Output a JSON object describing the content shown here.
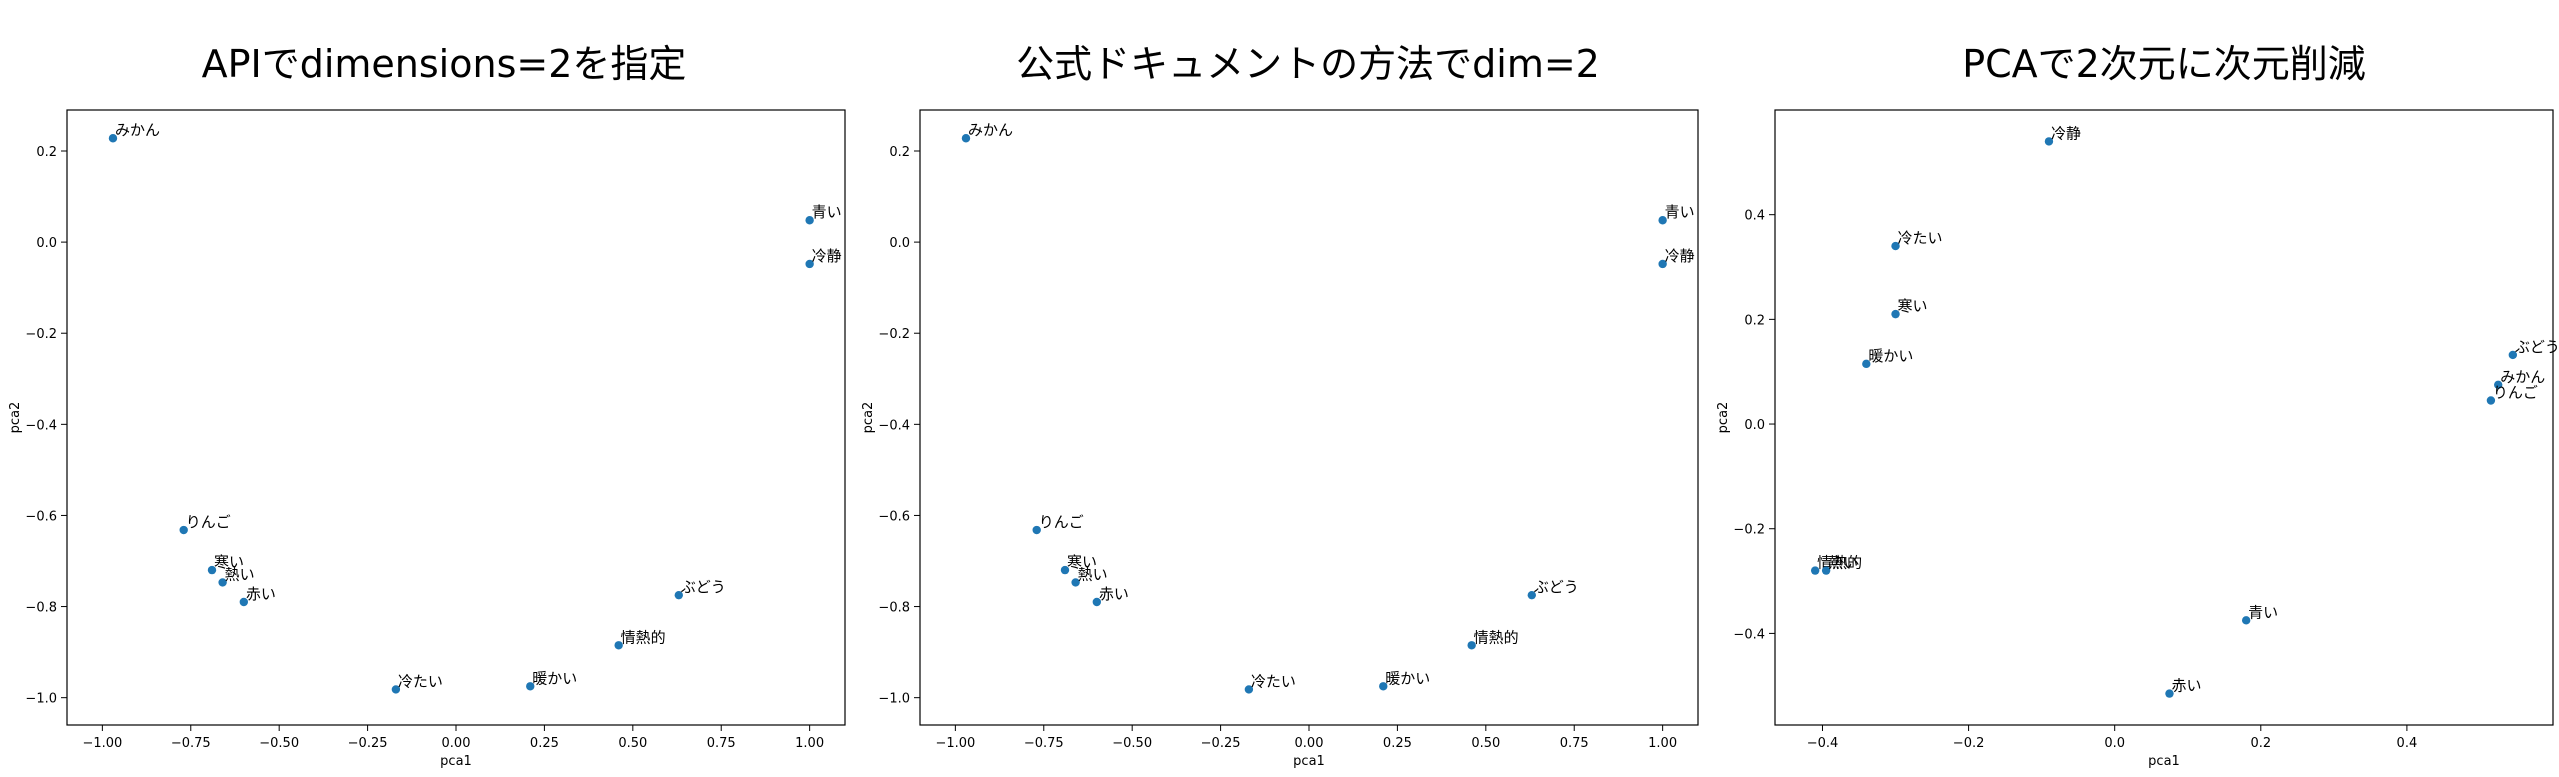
{
  "chart_data": [
    {
      "type": "scatter",
      "title": "APIでdimensions=2を指定",
      "xlabel": "pca1",
      "ylabel": "pca2",
      "xlim": [
        -1.1,
        1.1
      ],
      "ylim": [
        -1.06,
        0.29
      ],
      "xticks": [
        -1.0,
        -0.75,
        -0.5,
        -0.25,
        0.0,
        0.25,
        0.5,
        0.75,
        1.0
      ],
      "xtick_labels": [
        "−1.00",
        "−0.75",
        "−0.50",
        "−0.25",
        "0.00",
        "0.25",
        "0.50",
        "0.75",
        "1.00"
      ],
      "yticks": [
        -1.0,
        -0.8,
        -0.6,
        -0.4,
        -0.2,
        0.0,
        0.2
      ],
      "ytick_labels": [
        "−1.0",
        "−0.8",
        "−0.6",
        "−0.4",
        "−0.2",
        "0.0",
        "0.2"
      ],
      "points": [
        {
          "label": "みかん",
          "x": -0.97,
          "y": 0.228
        },
        {
          "label": "青い",
          "x": 1.0,
          "y": 0.048
        },
        {
          "label": "冷静",
          "x": 1.0,
          "y": -0.048
        },
        {
          "label": "りんご",
          "x": -0.77,
          "y": -0.632
        },
        {
          "label": "寒い",
          "x": -0.69,
          "y": -0.72
        },
        {
          "label": "熱い",
          "x": -0.66,
          "y": -0.747
        },
        {
          "label": "赤い",
          "x": -0.6,
          "y": -0.79
        },
        {
          "label": "ぶどう",
          "x": 0.63,
          "y": -0.775
        },
        {
          "label": "情熱的",
          "x": 0.46,
          "y": -0.885
        },
        {
          "label": "暖かい",
          "x": 0.21,
          "y": -0.975
        },
        {
          "label": "冷たい",
          "x": -0.17,
          "y": -0.982
        }
      ]
    },
    {
      "type": "scatter",
      "title": "公式ドキュメントの方法でdim=2",
      "xlabel": "pca1",
      "ylabel": "pca2",
      "xlim": [
        -1.1,
        1.1
      ],
      "ylim": [
        -1.06,
        0.29
      ],
      "xticks": [
        -1.0,
        -0.75,
        -0.5,
        -0.25,
        0.0,
        0.25,
        0.5,
        0.75,
        1.0
      ],
      "xtick_labels": [
        "−1.00",
        "−0.75",
        "−0.50",
        "−0.25",
        "0.00",
        "0.25",
        "0.50",
        "0.75",
        "1.00"
      ],
      "yticks": [
        -1.0,
        -0.8,
        -0.6,
        -0.4,
        -0.2,
        0.0,
        0.2
      ],
      "ytick_labels": [
        "−1.0",
        "−0.8",
        "−0.6",
        "−0.4",
        "−0.2",
        "0.0",
        "0.2"
      ],
      "points": [
        {
          "label": "みかん",
          "x": -0.97,
          "y": 0.228
        },
        {
          "label": "青い",
          "x": 1.0,
          "y": 0.048
        },
        {
          "label": "冷静",
          "x": 1.0,
          "y": -0.048
        },
        {
          "label": "りんご",
          "x": -0.77,
          "y": -0.632
        },
        {
          "label": "寒い",
          "x": -0.69,
          "y": -0.72
        },
        {
          "label": "熱い",
          "x": -0.66,
          "y": -0.747
        },
        {
          "label": "赤い",
          "x": -0.6,
          "y": -0.79
        },
        {
          "label": "ぶどう",
          "x": 0.63,
          "y": -0.775
        },
        {
          "label": "情熱的",
          "x": 0.46,
          "y": -0.885
        },
        {
          "label": "暖かい",
          "x": 0.21,
          "y": -0.975
        },
        {
          "label": "冷たい",
          "x": -0.17,
          "y": -0.982
        }
      ]
    },
    {
      "type": "scatter",
      "title": "PCAで2次元に次元削減",
      "xlabel": "pca1",
      "ylabel": "pca2",
      "xlim": [
        -0.465,
        0.6
      ],
      "ylim": [
        -0.575,
        0.6
      ],
      "xticks": [
        -0.4,
        -0.2,
        0.0,
        0.2,
        0.4
      ],
      "xtick_labels": [
        "−0.4",
        "−0.2",
        "0.0",
        "0.2",
        "0.4"
      ],
      "yticks": [
        -0.4,
        -0.2,
        0.0,
        0.2,
        0.4
      ],
      "ytick_labels": [
        "−0.4",
        "−0.2",
        "0.0",
        "0.2",
        "0.4"
      ],
      "points": [
        {
          "label": "冷静",
          "x": -0.09,
          "y": 0.54
        },
        {
          "label": "冷たい",
          "x": -0.3,
          "y": 0.34
        },
        {
          "label": "寒い",
          "x": -0.3,
          "y": 0.21
        },
        {
          "label": "暖かい",
          "x": -0.34,
          "y": 0.115
        },
        {
          "label": "ぶどう",
          "x": 0.545,
          "y": 0.132
        },
        {
          "label": "みかん",
          "x": 0.525,
          "y": 0.075
        },
        {
          "label": "りんご",
          "x": 0.515,
          "y": 0.045
        },
        {
          "label": "情熱的",
          "x": -0.41,
          "y": -0.28
        },
        {
          "label": "熱い",
          "x": -0.395,
          "y": -0.28
        },
        {
          "label": "青い",
          "x": 0.18,
          "y": -0.375
        },
        {
          "label": "赤い",
          "x": 0.075,
          "y": -0.515
        }
      ]
    }
  ],
  "colors": {
    "point": "#1f77b4",
    "axis": "#000000",
    "background": "#ffffff"
  }
}
